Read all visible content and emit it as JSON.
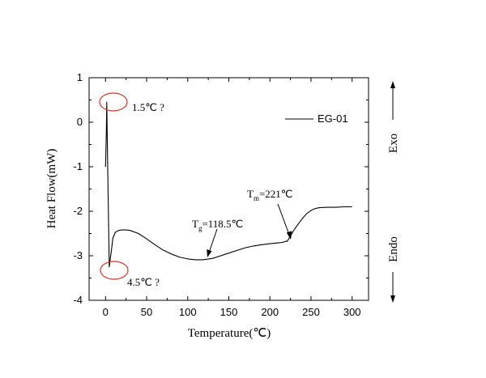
{
  "chart_data": {
    "type": "line",
    "xlabel": "Temperature(℃)",
    "ylabel": "Heat Flow(mW)",
    "xlim": [
      -20,
      320
    ],
    "ylim": [
      -4,
      1
    ],
    "xticks": [
      0,
      50,
      100,
      150,
      200,
      250,
      300
    ],
    "xtick_labels": [
      "0",
      "50",
      "100",
      "150",
      "200",
      "250",
      "300"
    ],
    "yticks": [
      1,
      0,
      -1,
      -2,
      -3,
      -4
    ],
    "ytick_labels": [
      "1",
      "0",
      "-1",
      "-2",
      "-3",
      "-4"
    ],
    "grid": false,
    "legend_position": "top-right",
    "series": [
      {
        "name": "EG-01",
        "color": "#000000",
        "x": [
          0,
          1,
          1.5,
          2.5,
          3.5,
          4.5,
          5.5,
          7,
          9,
          12,
          16,
          20,
          25,
          30,
          40,
          50,
          60,
          70,
          80,
          90,
          100,
          110,
          118.5,
          130,
          140,
          150,
          160,
          170,
          180,
          190,
          200,
          210,
          215,
          220,
          221,
          225,
          230,
          235,
          240,
          245,
          250,
          255,
          260,
          270,
          280,
          290,
          300
        ],
        "y": [
          -1.0,
          -0.2,
          0.45,
          -0.8,
          -2.0,
          -3.25,
          -3.1,
          -2.9,
          -2.6,
          -2.47,
          -2.43,
          -2.42,
          -2.42,
          -2.43,
          -2.5,
          -2.62,
          -2.75,
          -2.87,
          -2.96,
          -3.03,
          -3.07,
          -3.09,
          -3.09,
          -3.06,
          -3.0,
          -2.94,
          -2.88,
          -2.82,
          -2.78,
          -2.75,
          -2.73,
          -2.71,
          -2.7,
          -2.67,
          -2.68,
          -2.55,
          -2.4,
          -2.27,
          -2.15,
          -2.05,
          -1.98,
          -1.94,
          -1.92,
          -1.91,
          -1.91,
          -1.9,
          -1.9
        ]
      }
    ],
    "annotations": {
      "peak_exo": "1.5℃ ?",
      "peak_endo": "4.5℃ ?",
      "tg_symbol": "T",
      "tg_sub": "g",
      "tg_value": "=118.5℃",
      "tm_symbol": "T",
      "tm_sub": "m",
      "tm_value": "=221℃",
      "exo": "Exo",
      "endo": "Endo"
    }
  }
}
